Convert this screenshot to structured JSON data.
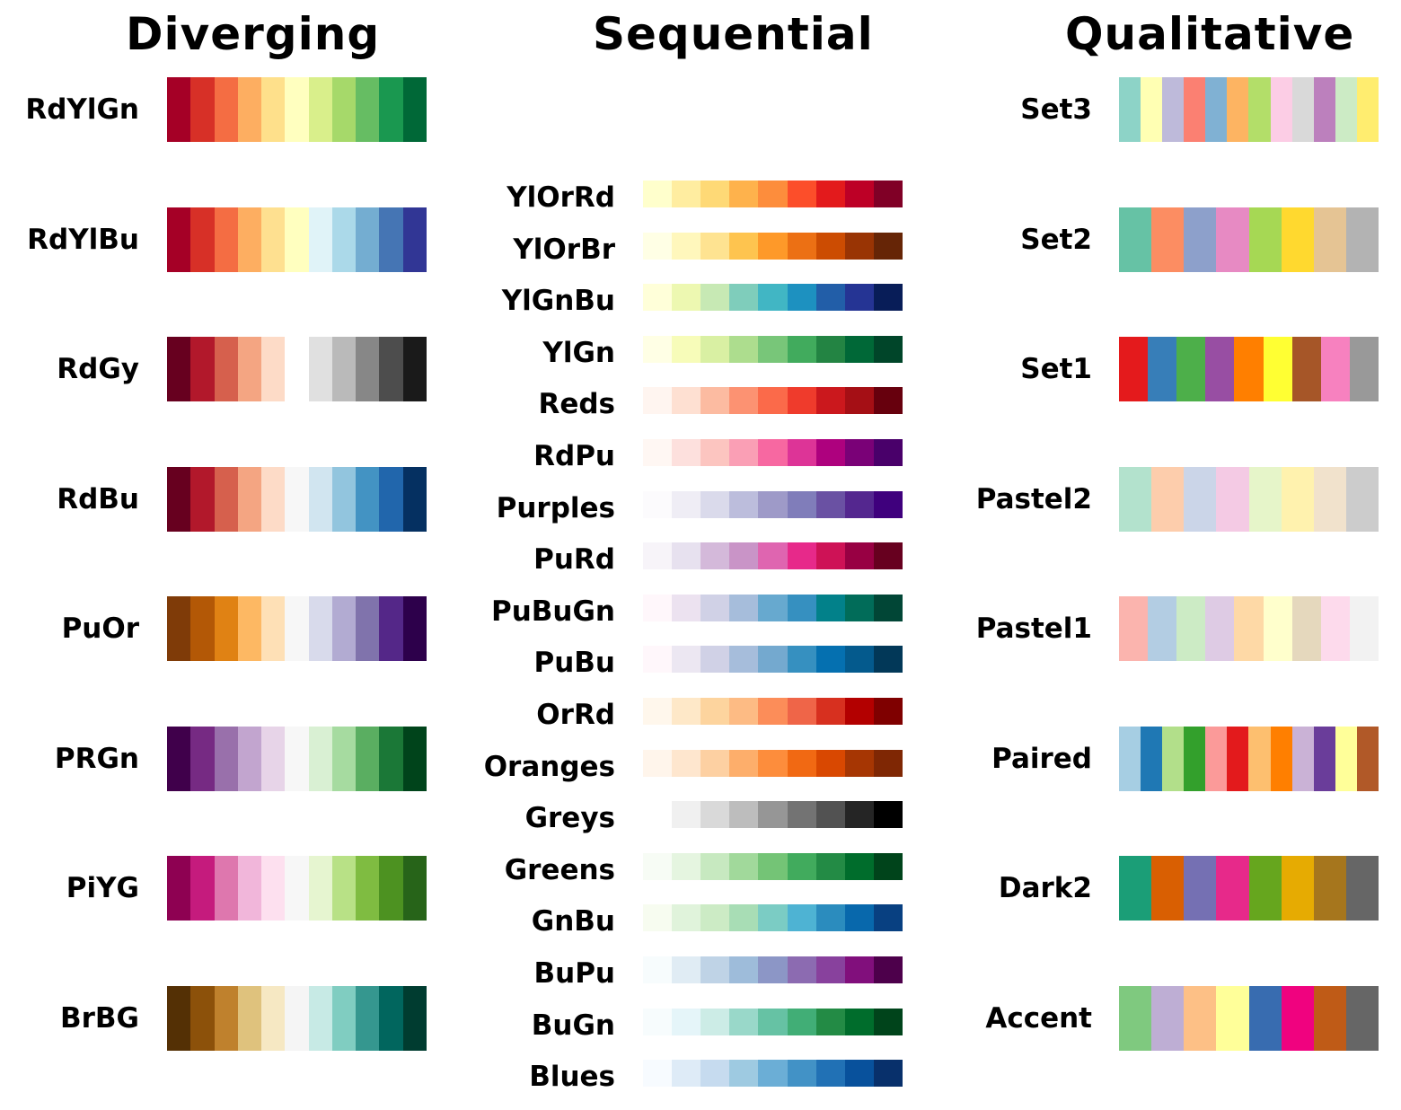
{
  "diverging": {
    "title": "Diverging",
    "palettes": [
      {
        "name": "RdYlGn",
        "colors": [
          "#a50026",
          "#d73027",
          "#f46d43",
          "#fdae61",
          "#fee08b",
          "#ffffbf",
          "#d9ef8b",
          "#a6d96a",
          "#66bd63",
          "#1a9850",
          "#006837"
        ]
      },
      {
        "name": "RdYlBu",
        "colors": [
          "#a50026",
          "#d73027",
          "#f46d43",
          "#fdae61",
          "#fee090",
          "#ffffbf",
          "#e0f3f8",
          "#abd9e9",
          "#74add1",
          "#4575b4",
          "#313695"
        ]
      },
      {
        "name": "RdGy",
        "colors": [
          "#67001f",
          "#b2182b",
          "#d6604d",
          "#f4a582",
          "#fddbc7",
          "#ffffff",
          "#e0e0e0",
          "#bababa",
          "#878787",
          "#4d4d4d",
          "#1a1a1a"
        ]
      },
      {
        "name": "RdBu",
        "colors": [
          "#67001f",
          "#b2182b",
          "#d6604d",
          "#f4a582",
          "#fddbc7",
          "#f7f7f7",
          "#d1e5f0",
          "#92c5de",
          "#4393c3",
          "#2166ac",
          "#053061"
        ]
      },
      {
        "name": "PuOr",
        "colors": [
          "#7f3b08",
          "#b35806",
          "#e08214",
          "#fdb863",
          "#fee0b6",
          "#f7f7f7",
          "#d8daeb",
          "#b2abd2",
          "#8073ac",
          "#542788",
          "#2d004b"
        ]
      },
      {
        "name": "PRGn",
        "colors": [
          "#40004b",
          "#762a83",
          "#9970ab",
          "#c2a5cf",
          "#e7d4e8",
          "#f7f7f7",
          "#d9f0d3",
          "#a6dba0",
          "#5aae61",
          "#1b7837",
          "#00441b"
        ]
      },
      {
        "name": "PiYG",
        "colors": [
          "#8e0152",
          "#c51b7d",
          "#de77ae",
          "#f1b6da",
          "#fde0ef",
          "#f7f7f7",
          "#e6f5d0",
          "#b8e186",
          "#7fbc41",
          "#4d9221",
          "#276419"
        ]
      },
      {
        "name": "BrBG",
        "colors": [
          "#543005",
          "#8c510a",
          "#bf812d",
          "#dfc27d",
          "#f6e8c3",
          "#f5f5f5",
          "#c7eae5",
          "#80cdc1",
          "#35978f",
          "#01665e",
          "#003c30"
        ]
      }
    ]
  },
  "sequential": {
    "title": "Sequential",
    "palettes": [
      {
        "name": "YlOrRd",
        "colors": [
          "#ffffcc",
          "#ffeda0",
          "#fed976",
          "#feb24c",
          "#fd8d3c",
          "#fc4e2a",
          "#e31a1c",
          "#bd0026",
          "#800026"
        ]
      },
      {
        "name": "YlOrBr",
        "colors": [
          "#ffffe5",
          "#fff7bc",
          "#fee391",
          "#fec44f",
          "#fe9929",
          "#ec7014",
          "#cc4c02",
          "#993404",
          "#662506"
        ]
      },
      {
        "name": "YlGnBu",
        "colors": [
          "#ffffd9",
          "#edf8b1",
          "#c7e9b4",
          "#7fcdbb",
          "#41b6c4",
          "#1d91c0",
          "#225ea8",
          "#253494",
          "#081d58"
        ]
      },
      {
        "name": "YlGn",
        "colors": [
          "#ffffe5",
          "#f7fcb9",
          "#d9f0a3",
          "#addd8e",
          "#78c679",
          "#41ab5d",
          "#238443",
          "#006837",
          "#004529"
        ]
      },
      {
        "name": "Reds",
        "colors": [
          "#fff5f0",
          "#fee0d2",
          "#fcbba1",
          "#fc9272",
          "#fb6a4a",
          "#ef3b2c",
          "#cb181d",
          "#a50f15",
          "#67000d"
        ]
      },
      {
        "name": "RdPu",
        "colors": [
          "#fff7f3",
          "#fde0dd",
          "#fcc5c0",
          "#fa9fb5",
          "#f768a1",
          "#dd3497",
          "#ae017e",
          "#7a0177",
          "#49006a"
        ]
      },
      {
        "name": "Purples",
        "colors": [
          "#fcfbfd",
          "#efedf5",
          "#dadaeb",
          "#bcbddc",
          "#9e9ac8",
          "#807dba",
          "#6a51a3",
          "#54278f",
          "#3f007d"
        ]
      },
      {
        "name": "PuRd",
        "colors": [
          "#f7f4f9",
          "#e7e1ef",
          "#d4b9da",
          "#c994c7",
          "#df65b0",
          "#e7298a",
          "#ce1256",
          "#980043",
          "#67001f"
        ]
      },
      {
        "name": "PuBuGn",
        "colors": [
          "#fff7fb",
          "#ece2f0",
          "#d0d1e6",
          "#a6bddb",
          "#67a9cf",
          "#3690c0",
          "#02818a",
          "#016c59",
          "#014636"
        ]
      },
      {
        "name": "PuBu",
        "colors": [
          "#fff7fb",
          "#ece7f2",
          "#d0d1e6",
          "#a6bddb",
          "#74a9cf",
          "#3690c0",
          "#0570b0",
          "#045a8d",
          "#023858"
        ]
      },
      {
        "name": "OrRd",
        "colors": [
          "#fff7ec",
          "#fee8c8",
          "#fdd49e",
          "#fdbb84",
          "#fc8d59",
          "#ef6548",
          "#d7301f",
          "#b30000",
          "#7f0000"
        ]
      },
      {
        "name": "Oranges",
        "colors": [
          "#fff5eb",
          "#fee6ce",
          "#fdd0a2",
          "#fdae6b",
          "#fd8d3c",
          "#f16913",
          "#d94801",
          "#a63603",
          "#7f2704"
        ]
      },
      {
        "name": "Greys",
        "shift": true,
        "colors": [
          "#f0f0f0",
          "#d9d9d9",
          "#bdbdbd",
          "#969696",
          "#737373",
          "#525252",
          "#252525",
          "#000000"
        ]
      },
      {
        "name": "Greens",
        "colors": [
          "#f7fcf5",
          "#e5f5e0",
          "#c7e9c0",
          "#a1d99b",
          "#74c476",
          "#41ab5d",
          "#238b45",
          "#006d2c",
          "#00441b"
        ]
      },
      {
        "name": "GnBu",
        "colors": [
          "#f7fcf0",
          "#e0f3db",
          "#ccebc5",
          "#a8ddb5",
          "#7bccc4",
          "#4eb3d3",
          "#2b8cbe",
          "#0868ac",
          "#084081"
        ]
      },
      {
        "name": "BuPu",
        "colors": [
          "#f7fcfd",
          "#e0ecf4",
          "#bfd3e6",
          "#9ebcda",
          "#8c96c6",
          "#8c6bb1",
          "#88419d",
          "#810f7c",
          "#4d004b"
        ]
      },
      {
        "name": "BuGn",
        "colors": [
          "#f7fcfd",
          "#e5f5f9",
          "#ccece6",
          "#99d8c9",
          "#66c2a4",
          "#41ae76",
          "#238b45",
          "#006d2c",
          "#00441b"
        ]
      },
      {
        "name": "Blues",
        "colors": [
          "#f7fbff",
          "#deebf7",
          "#c6dbef",
          "#9ecae1",
          "#6baed6",
          "#4292c6",
          "#2171b5",
          "#08519c",
          "#08306b"
        ]
      }
    ]
  },
  "qualitative": {
    "title": "Qualitative",
    "palettes": [
      {
        "name": "Set3",
        "colors": [
          "#8dd3c7",
          "#ffffb3",
          "#bebada",
          "#fb8072",
          "#80b1d3",
          "#fdb462",
          "#b3de69",
          "#fccde5",
          "#d9d9d9",
          "#bc80bd",
          "#ccebc5",
          "#ffed6f"
        ]
      },
      {
        "name": "Set2",
        "colors": [
          "#66c2a5",
          "#fc8d62",
          "#8da0cb",
          "#e78ac3",
          "#a6d854",
          "#ffd92f",
          "#e5c494",
          "#b3b3b3"
        ]
      },
      {
        "name": "Set1",
        "colors": [
          "#e41a1c",
          "#377eb8",
          "#4daf4a",
          "#984ea3",
          "#ff7f00",
          "#ffff33",
          "#a65628",
          "#f781bf",
          "#999999"
        ]
      },
      {
        "name": "Pastel2",
        "colors": [
          "#b3e2cd",
          "#fdcdac",
          "#cbd5e8",
          "#f4cae4",
          "#e6f5c9",
          "#fff2ae",
          "#f1e2cc",
          "#cccccc"
        ]
      },
      {
        "name": "Pastel1",
        "colors": [
          "#fbb4ae",
          "#b3cde3",
          "#ccebc5",
          "#decbe4",
          "#fed9a6",
          "#ffffcc",
          "#e5d8bd",
          "#fddaec",
          "#f2f2f2"
        ]
      },
      {
        "name": "Paired",
        "colors": [
          "#a6cee3",
          "#1f78b4",
          "#b2df8a",
          "#33a02c",
          "#fb9a99",
          "#e31a1c",
          "#fdbf6f",
          "#ff7f00",
          "#cab2d6",
          "#6a3d9a",
          "#ffff99",
          "#b15928"
        ]
      },
      {
        "name": "Dark2",
        "colors": [
          "#1b9e77",
          "#d95f02",
          "#7570b3",
          "#e7298a",
          "#66a61e",
          "#e6ab02",
          "#a6761d",
          "#666666"
        ]
      },
      {
        "name": "Accent",
        "colors": [
          "#7fc97f",
          "#beaed4",
          "#fdc086",
          "#ffff99",
          "#386cb0",
          "#f0027f",
          "#bf5b17",
          "#666666"
        ]
      }
    ]
  }
}
